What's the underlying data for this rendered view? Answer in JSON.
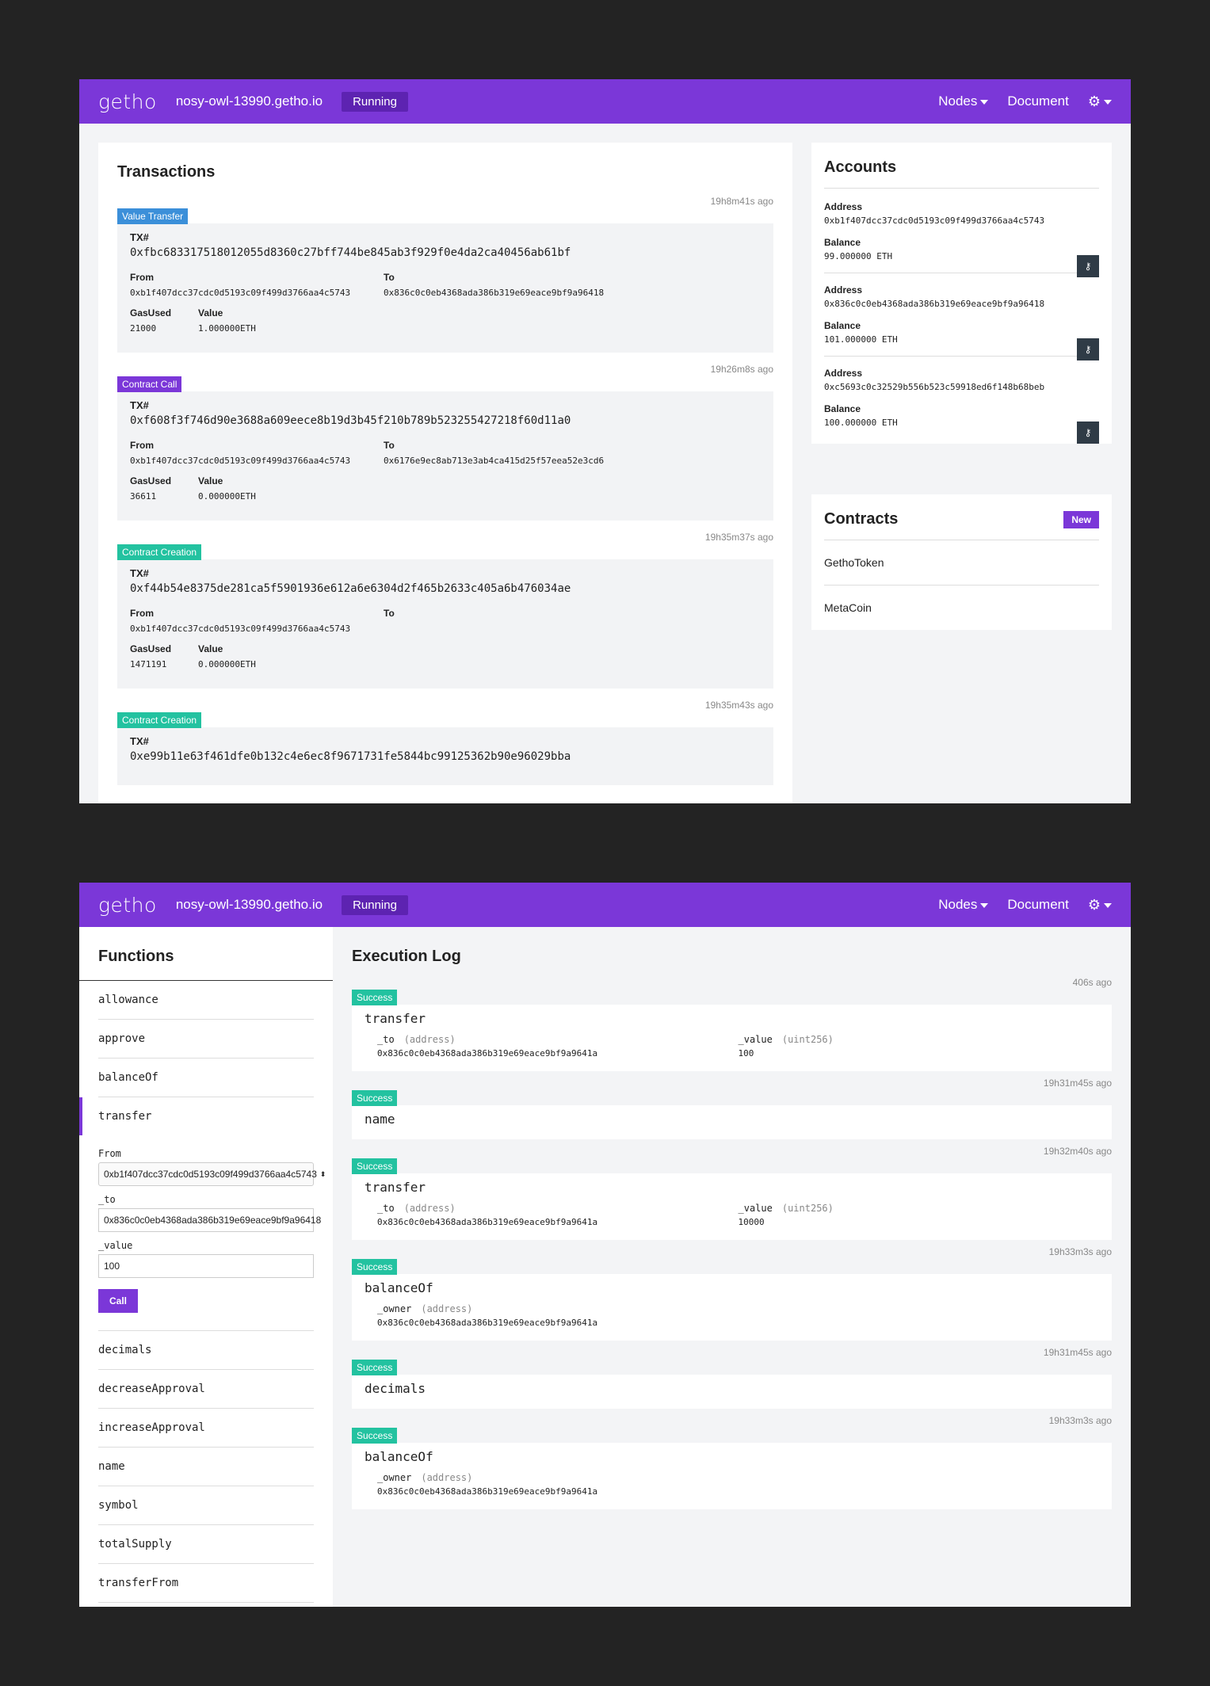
{
  "nav": {
    "brand": "getho",
    "host": "nosy-owl-13990.getho.io",
    "status": "Running",
    "nodes": "Nodes",
    "document": "Document",
    "settings_icon": "gear-icon"
  },
  "transactions": {
    "title": "Transactions",
    "tx_label": "TX#",
    "from_label": "From",
    "to_label": "To",
    "gas_label": "GasUsed",
    "value_label": "Value",
    "items": [
      {
        "time": "19h8m41s ago",
        "type": "Value Transfer",
        "color": "#3b8fd9",
        "hash": "0xfbc683317518012055d8360c27bff744be845ab3f929f0e4da2ca40456ab61bf",
        "from": "0xb1f407dcc37cdc0d5193c09f499d3766aa4c5743",
        "to": "0x836c0c0eb4368ada386b319e69eace9bf9a96418",
        "gas": "21000",
        "value": "1.000000ETH"
      },
      {
        "time": "19h26m8s ago",
        "type": "Contract Call",
        "color": "#7b37d8",
        "hash": "0xf608f3f746d90e3688a609eece8b19d3b45f210b789b523255427218f60d11a0",
        "from": "0xb1f407dcc37cdc0d5193c09f499d3766aa4c5743",
        "to": "0x6176e9ec8ab713e3ab4ca415d25f57eea52e3cd6",
        "gas": "36611",
        "value": "0.000000ETH"
      },
      {
        "time": "19h35m37s ago",
        "type": "Contract Creation",
        "color": "#23c2a0",
        "hash": "0xf44b54e8375de281ca5f5901936e612a6e6304d2f465b2633c405a6b476034ae",
        "from": "0xb1f407dcc37cdc0d5193c09f499d3766aa4c5743",
        "to": "",
        "gas": "1471191",
        "value": "0.000000ETH"
      },
      {
        "time": "19h35m43s ago",
        "type": "Contract Creation",
        "color": "#23c2a0",
        "hash": "0xe99b11e63f461dfe0b132c4e6ec8f9671731fe5844bc99125362b90e96029bba",
        "from": "",
        "to": "",
        "gas": "",
        "value": ""
      }
    ]
  },
  "accounts": {
    "title": "Accounts",
    "address_label": "Address",
    "balance_label": "Balance",
    "key_icon": "key-icon",
    "items": [
      {
        "address": "0xb1f407dcc37cdc0d5193c09f499d3766aa4c5743",
        "balance": "99.000000 ETH"
      },
      {
        "address": "0x836c0c0eb4368ada386b319e69eace9bf9a96418",
        "balance": "101.000000 ETH"
      },
      {
        "address": "0xc5693c0c32529b556b523c59918ed6f148b68beb",
        "balance": "100.000000 ETH"
      }
    ]
  },
  "contracts": {
    "title": "Contracts",
    "new_label": "New",
    "items": [
      "GethoToken",
      "MetaCoin"
    ]
  },
  "functions": {
    "title": "Functions",
    "before": [
      "allowance",
      "approve",
      "balanceOf"
    ],
    "active": "transfer",
    "form": {
      "from_label": "From",
      "from_value": "0xb1f407dcc37cdc0d5193c09f499d3766aa4c5743",
      "to_label": "_to",
      "to_value": "0x836c0c0eb4368ada386b319e69eace9bf9a96418",
      "value_label": "_value",
      "value_value": "100",
      "call_label": "Call"
    },
    "after": [
      "decimals",
      "decreaseApproval",
      "increaseApproval",
      "name",
      "symbol",
      "totalSupply",
      "transferFrom"
    ]
  },
  "execution_log": {
    "title": "Execution Log",
    "items": [
      {
        "time": "406s ago",
        "status": "Success",
        "fn": "transfer",
        "args": [
          {
            "name": "_to",
            "type": "(address)",
            "value": "0x836c0c0eb4368ada386b319e69eace9bf9a9641a"
          },
          {
            "name": "_value",
            "type": "(uint256)",
            "value": "100"
          }
        ]
      },
      {
        "time": "19h31m45s ago",
        "status": "Success",
        "fn": "name",
        "args": []
      },
      {
        "time": "19h32m40s ago",
        "status": "Success",
        "fn": "transfer",
        "args": [
          {
            "name": "_to",
            "type": "(address)",
            "value": "0x836c0c0eb4368ada386b319e69eace9bf9a9641a"
          },
          {
            "name": "_value",
            "type": "(uint256)",
            "value": "10000"
          }
        ]
      },
      {
        "time": "19h33m3s ago",
        "status": "Success",
        "fn": "balanceOf",
        "args": [
          {
            "name": "_owner",
            "type": "(address)",
            "value": "0x836c0c0eb4368ada386b319e69eace9bf9a9641a"
          }
        ]
      },
      {
        "time": "19h31m45s ago",
        "status": "Success",
        "fn": "decimals",
        "args": []
      },
      {
        "time": "19h33m3s ago",
        "status": "Success",
        "fn": "balanceOf",
        "args": [
          {
            "name": "_owner",
            "type": "(address)",
            "value": "0x836c0c0eb4368ada386b319e69eace9bf9a9641a"
          }
        ]
      }
    ]
  }
}
